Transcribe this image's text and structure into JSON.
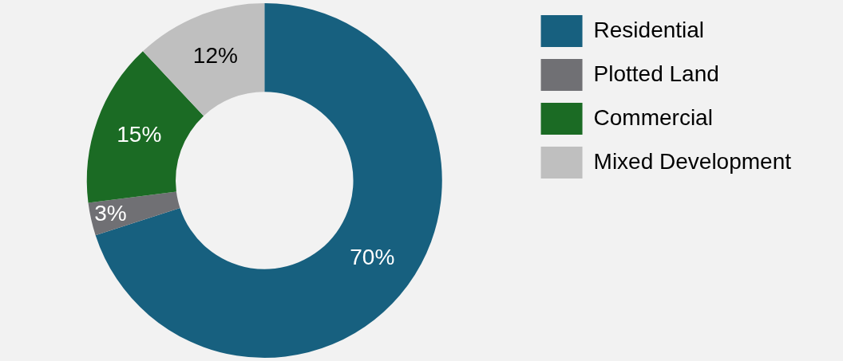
{
  "chart_data": {
    "type": "donut",
    "categories": [
      "Residential",
      "Plotted Land",
      "Commercial",
      "Mixed Development"
    ],
    "values": [
      70,
      3,
      15,
      12
    ],
    "colors": [
      "#17607f",
      "#707074",
      "#1b6b24",
      "#bfbfbf"
    ],
    "value_labels": [
      "70%",
      "3%",
      "15%",
      "12%"
    ],
    "legend": "right"
  }
}
